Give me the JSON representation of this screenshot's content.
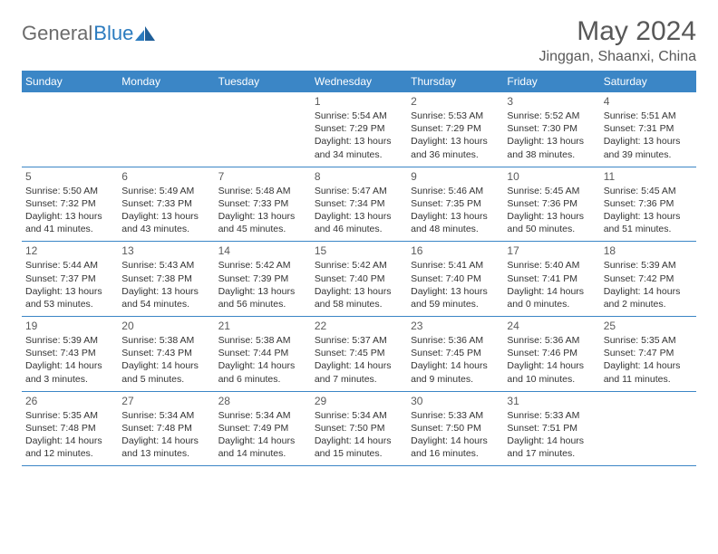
{
  "brand": {
    "part1": "General",
    "part2": "Blue"
  },
  "title": "May 2024",
  "location": "Jinggan, Shaanxi, China",
  "colors": {
    "header_bg": "#3b86c6",
    "header_text": "#ffffff",
    "body_text": "#333333",
    "title_text": "#585858",
    "logo_gray": "#6b6b6b",
    "logo_blue": "#2b7bbf",
    "rule": "#3b86c6",
    "background": "#ffffff"
  },
  "weekdays": [
    "Sunday",
    "Monday",
    "Tuesday",
    "Wednesday",
    "Thursday",
    "Friday",
    "Saturday"
  ],
  "weeks": [
    [
      {
        "n": "",
        "sr": "",
        "ss": "",
        "d1": "",
        "d2": ""
      },
      {
        "n": "",
        "sr": "",
        "ss": "",
        "d1": "",
        "d2": ""
      },
      {
        "n": "",
        "sr": "",
        "ss": "",
        "d1": "",
        "d2": ""
      },
      {
        "n": "1",
        "sr": "Sunrise: 5:54 AM",
        "ss": "Sunset: 7:29 PM",
        "d1": "Daylight: 13 hours",
        "d2": "and 34 minutes."
      },
      {
        "n": "2",
        "sr": "Sunrise: 5:53 AM",
        "ss": "Sunset: 7:29 PM",
        "d1": "Daylight: 13 hours",
        "d2": "and 36 minutes."
      },
      {
        "n": "3",
        "sr": "Sunrise: 5:52 AM",
        "ss": "Sunset: 7:30 PM",
        "d1": "Daylight: 13 hours",
        "d2": "and 38 minutes."
      },
      {
        "n": "4",
        "sr": "Sunrise: 5:51 AM",
        "ss": "Sunset: 7:31 PM",
        "d1": "Daylight: 13 hours",
        "d2": "and 39 minutes."
      }
    ],
    [
      {
        "n": "5",
        "sr": "Sunrise: 5:50 AM",
        "ss": "Sunset: 7:32 PM",
        "d1": "Daylight: 13 hours",
        "d2": "and 41 minutes."
      },
      {
        "n": "6",
        "sr": "Sunrise: 5:49 AM",
        "ss": "Sunset: 7:33 PM",
        "d1": "Daylight: 13 hours",
        "d2": "and 43 minutes."
      },
      {
        "n": "7",
        "sr": "Sunrise: 5:48 AM",
        "ss": "Sunset: 7:33 PM",
        "d1": "Daylight: 13 hours",
        "d2": "and 45 minutes."
      },
      {
        "n": "8",
        "sr": "Sunrise: 5:47 AM",
        "ss": "Sunset: 7:34 PM",
        "d1": "Daylight: 13 hours",
        "d2": "and 46 minutes."
      },
      {
        "n": "9",
        "sr": "Sunrise: 5:46 AM",
        "ss": "Sunset: 7:35 PM",
        "d1": "Daylight: 13 hours",
        "d2": "and 48 minutes."
      },
      {
        "n": "10",
        "sr": "Sunrise: 5:45 AM",
        "ss": "Sunset: 7:36 PM",
        "d1": "Daylight: 13 hours",
        "d2": "and 50 minutes."
      },
      {
        "n": "11",
        "sr": "Sunrise: 5:45 AM",
        "ss": "Sunset: 7:36 PM",
        "d1": "Daylight: 13 hours",
        "d2": "and 51 minutes."
      }
    ],
    [
      {
        "n": "12",
        "sr": "Sunrise: 5:44 AM",
        "ss": "Sunset: 7:37 PM",
        "d1": "Daylight: 13 hours",
        "d2": "and 53 minutes."
      },
      {
        "n": "13",
        "sr": "Sunrise: 5:43 AM",
        "ss": "Sunset: 7:38 PM",
        "d1": "Daylight: 13 hours",
        "d2": "and 54 minutes."
      },
      {
        "n": "14",
        "sr": "Sunrise: 5:42 AM",
        "ss": "Sunset: 7:39 PM",
        "d1": "Daylight: 13 hours",
        "d2": "and 56 minutes."
      },
      {
        "n": "15",
        "sr": "Sunrise: 5:42 AM",
        "ss": "Sunset: 7:40 PM",
        "d1": "Daylight: 13 hours",
        "d2": "and 58 minutes."
      },
      {
        "n": "16",
        "sr": "Sunrise: 5:41 AM",
        "ss": "Sunset: 7:40 PM",
        "d1": "Daylight: 13 hours",
        "d2": "and 59 minutes."
      },
      {
        "n": "17",
        "sr": "Sunrise: 5:40 AM",
        "ss": "Sunset: 7:41 PM",
        "d1": "Daylight: 14 hours",
        "d2": "and 0 minutes."
      },
      {
        "n": "18",
        "sr": "Sunrise: 5:39 AM",
        "ss": "Sunset: 7:42 PM",
        "d1": "Daylight: 14 hours",
        "d2": "and 2 minutes."
      }
    ],
    [
      {
        "n": "19",
        "sr": "Sunrise: 5:39 AM",
        "ss": "Sunset: 7:43 PM",
        "d1": "Daylight: 14 hours",
        "d2": "and 3 minutes."
      },
      {
        "n": "20",
        "sr": "Sunrise: 5:38 AM",
        "ss": "Sunset: 7:43 PM",
        "d1": "Daylight: 14 hours",
        "d2": "and 5 minutes."
      },
      {
        "n": "21",
        "sr": "Sunrise: 5:38 AM",
        "ss": "Sunset: 7:44 PM",
        "d1": "Daylight: 14 hours",
        "d2": "and 6 minutes."
      },
      {
        "n": "22",
        "sr": "Sunrise: 5:37 AM",
        "ss": "Sunset: 7:45 PM",
        "d1": "Daylight: 14 hours",
        "d2": "and 7 minutes."
      },
      {
        "n": "23",
        "sr": "Sunrise: 5:36 AM",
        "ss": "Sunset: 7:45 PM",
        "d1": "Daylight: 14 hours",
        "d2": "and 9 minutes."
      },
      {
        "n": "24",
        "sr": "Sunrise: 5:36 AM",
        "ss": "Sunset: 7:46 PM",
        "d1": "Daylight: 14 hours",
        "d2": "and 10 minutes."
      },
      {
        "n": "25",
        "sr": "Sunrise: 5:35 AM",
        "ss": "Sunset: 7:47 PM",
        "d1": "Daylight: 14 hours",
        "d2": "and 11 minutes."
      }
    ],
    [
      {
        "n": "26",
        "sr": "Sunrise: 5:35 AM",
        "ss": "Sunset: 7:48 PM",
        "d1": "Daylight: 14 hours",
        "d2": "and 12 minutes."
      },
      {
        "n": "27",
        "sr": "Sunrise: 5:34 AM",
        "ss": "Sunset: 7:48 PM",
        "d1": "Daylight: 14 hours",
        "d2": "and 13 minutes."
      },
      {
        "n": "28",
        "sr": "Sunrise: 5:34 AM",
        "ss": "Sunset: 7:49 PM",
        "d1": "Daylight: 14 hours",
        "d2": "and 14 minutes."
      },
      {
        "n": "29",
        "sr": "Sunrise: 5:34 AM",
        "ss": "Sunset: 7:50 PM",
        "d1": "Daylight: 14 hours",
        "d2": "and 15 minutes."
      },
      {
        "n": "30",
        "sr": "Sunrise: 5:33 AM",
        "ss": "Sunset: 7:50 PM",
        "d1": "Daylight: 14 hours",
        "d2": "and 16 minutes."
      },
      {
        "n": "31",
        "sr": "Sunrise: 5:33 AM",
        "ss": "Sunset: 7:51 PM",
        "d1": "Daylight: 14 hours",
        "d2": "and 17 minutes."
      },
      {
        "n": "",
        "sr": "",
        "ss": "",
        "d1": "",
        "d2": ""
      }
    ]
  ]
}
